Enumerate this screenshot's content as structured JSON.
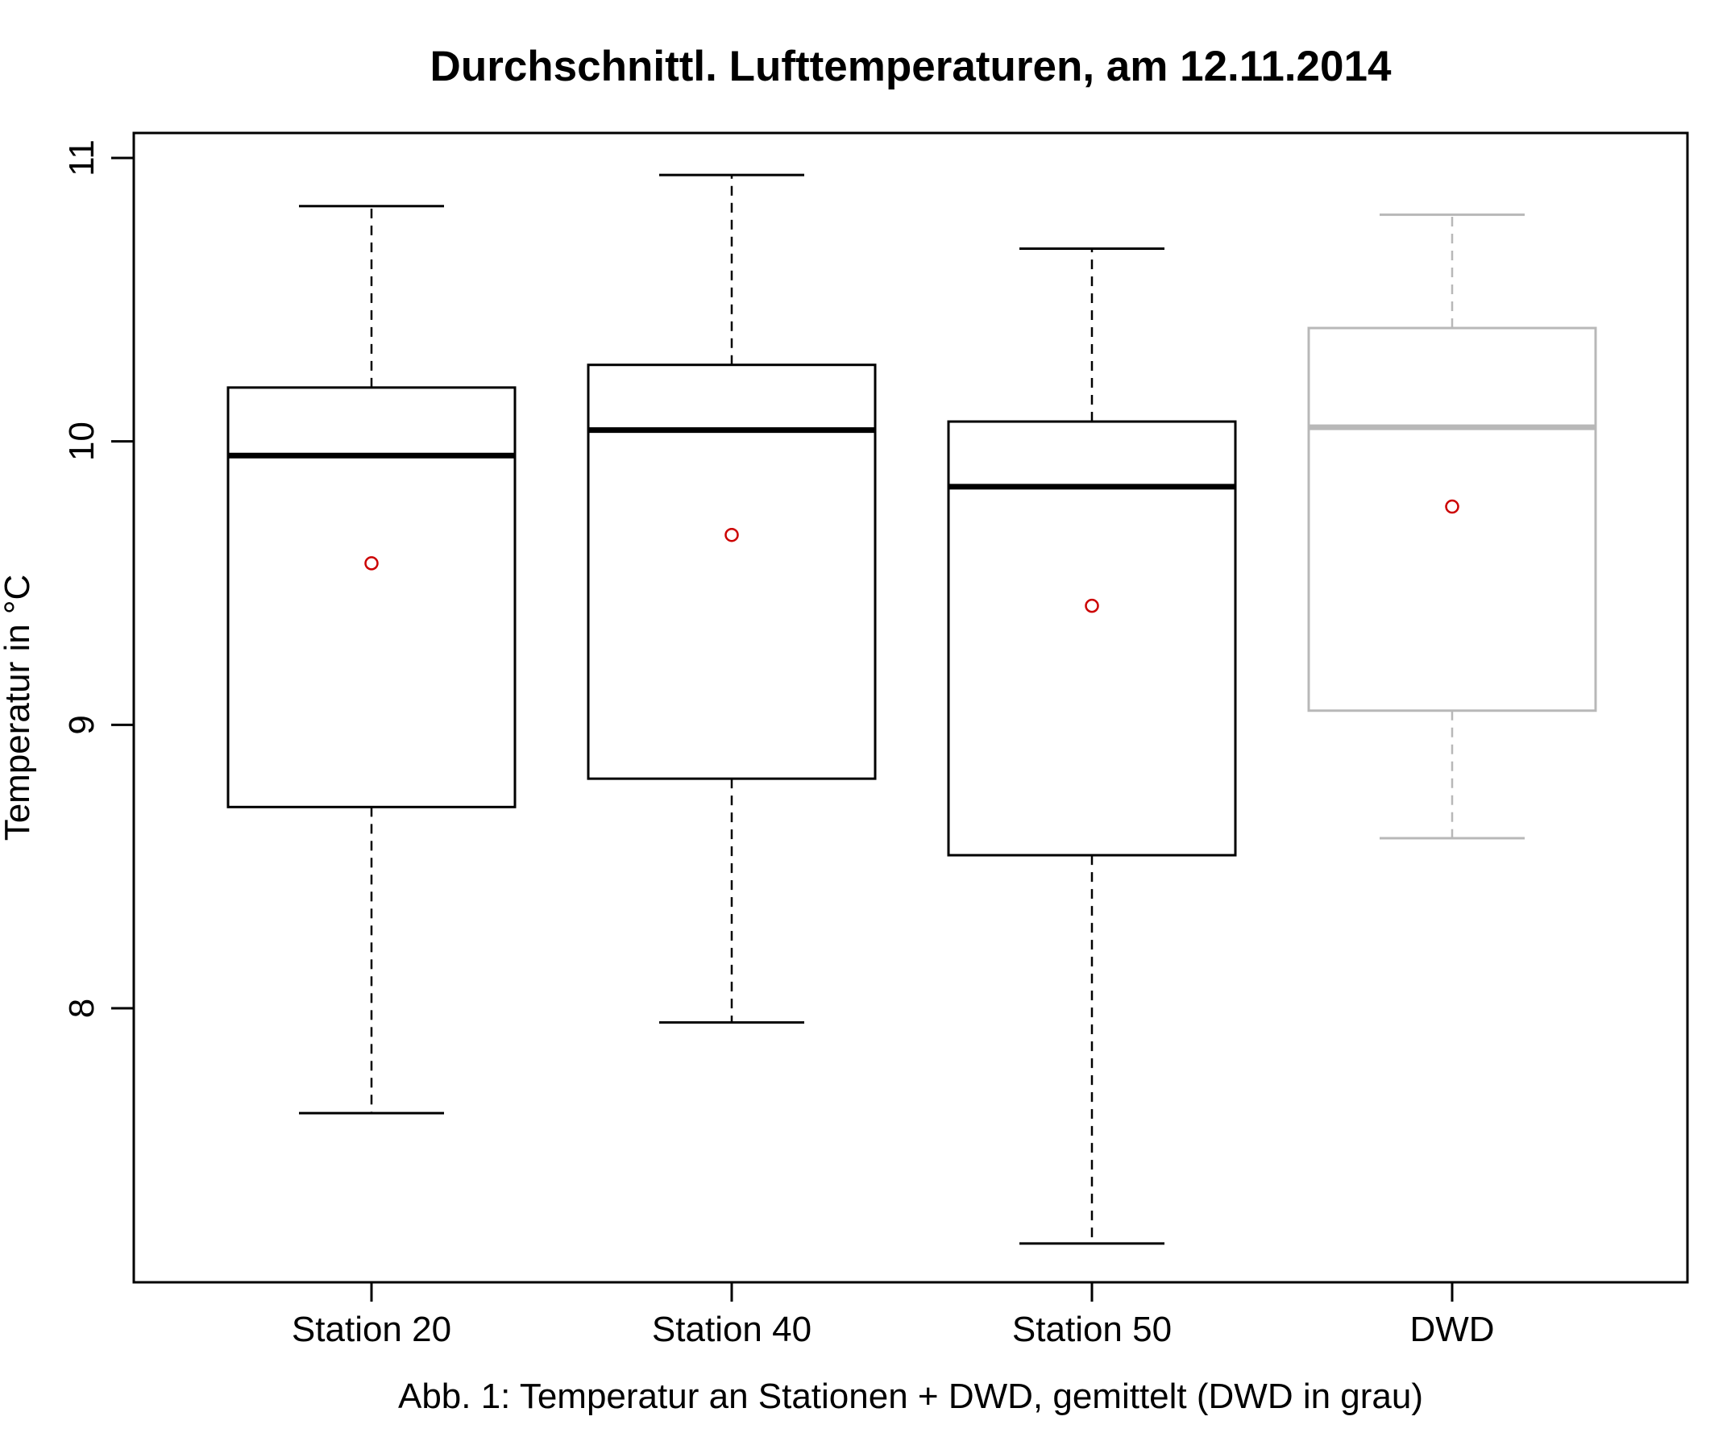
{
  "chart_data": {
    "type": "boxplot",
    "title": "Durchschnittl. Lufttemperaturen, am 12.11.2014",
    "ylabel": "Temperatur in °C",
    "xlabel": "",
    "caption": "Abb. 1: Temperatur an Stationen + DWD, gemittelt (DWD in grau)",
    "ylim": [
      7.0,
      11.1
    ],
    "yticks": [
      8,
      9,
      10,
      11
    ],
    "grid": false,
    "colors": {
      "box": "#000000",
      "box_grey": "#b8b8b8",
      "mean": "#cc0000"
    },
    "categories": [
      "Station 20",
      "Station 40",
      "Station 50",
      "DWD"
    ],
    "boxes": [
      {
        "name": "Station 20",
        "min": 7.63,
        "q1": 8.71,
        "median": 9.95,
        "q3": 10.19,
        "max": 10.83,
        "mean": 9.57,
        "color": "black"
      },
      {
        "name": "Station 40",
        "min": 7.95,
        "q1": 8.81,
        "median": 10.04,
        "q3": 10.27,
        "max": 10.94,
        "mean": 9.67,
        "color": "black"
      },
      {
        "name": "Station 50",
        "min": 7.17,
        "q1": 8.54,
        "median": 9.84,
        "q3": 10.07,
        "max": 10.68,
        "mean": 9.42,
        "color": "black"
      },
      {
        "name": "DWD",
        "min": 8.6,
        "q1": 9.05,
        "median": 10.05,
        "q3": 10.4,
        "max": 10.8,
        "mean": 9.77,
        "color": "grey"
      }
    ]
  }
}
